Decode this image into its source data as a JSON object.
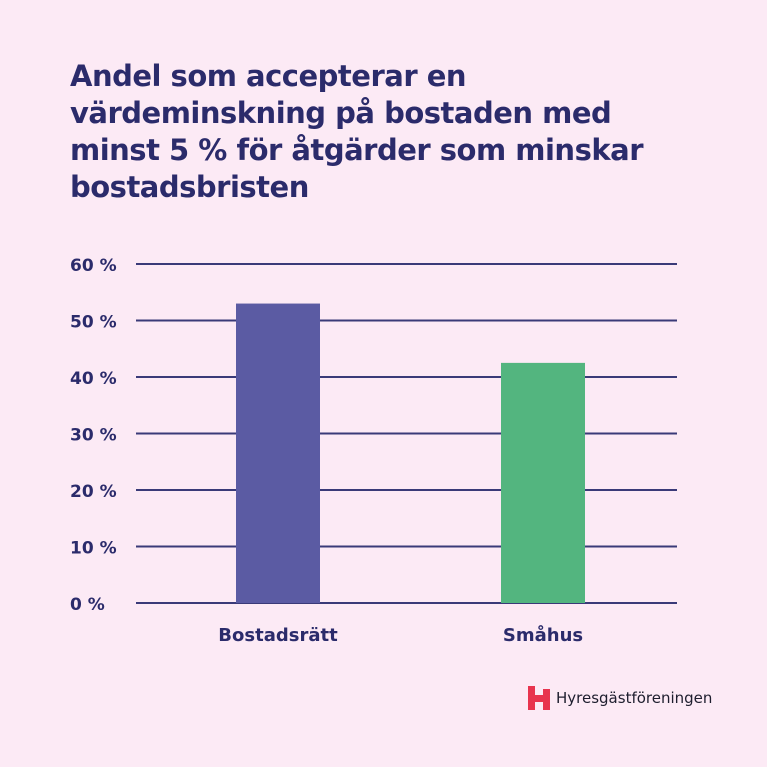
{
  "chart_data": {
    "type": "bar",
    "title": "Andel som accepterar en värdeminskning på bostaden med minst 5 % för åtgärder som minskar bostadsbristen",
    "categories": [
      "Bostadsrätt",
      "Småhus"
    ],
    "values": [
      53,
      42.5
    ],
    "colors": [
      "#5b5ba3",
      "#53b57f"
    ],
    "ylim": [
      0,
      60
    ],
    "yticks": [
      0,
      10,
      20,
      30,
      40,
      50,
      60
    ],
    "ytick_labels": [
      "0 %",
      "10 %",
      "20 %",
      "30 %",
      "40 %",
      "50 %",
      "60 %"
    ],
    "grid": true,
    "xlabel": "",
    "ylabel": ""
  },
  "logo": {
    "text": "Hyresgästföreningen",
    "color": "#e8344e"
  }
}
